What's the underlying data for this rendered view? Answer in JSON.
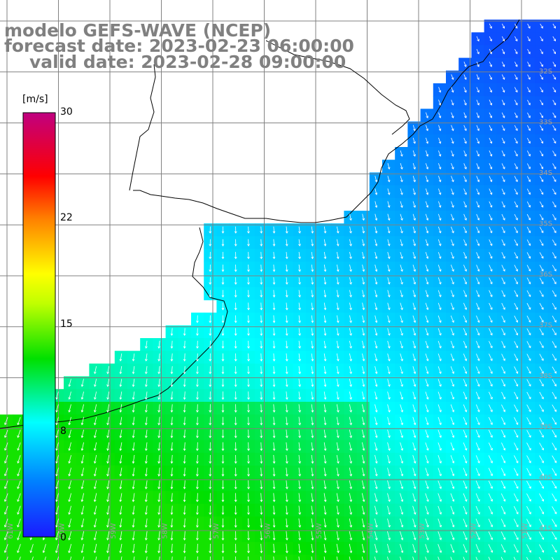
{
  "title": {
    "model": "modelo GEFS-WAVE (NCEP)",
    "forecast": "forecast date: 2023-02-23 06:00:00",
    "valid": "valid date: 2023-02-28 09:00:00"
  },
  "colorbar": {
    "unit": "[m/s]",
    "ticks": [
      "30",
      "22",
      "15",
      "8",
      "0"
    ],
    "tick_values": [
      30,
      22,
      15,
      8,
      0
    ],
    "range": [
      0,
      30
    ],
    "colors": [
      "#1a1aff",
      "#00aaff",
      "#00ffff",
      "#00ff00",
      "#ffff00",
      "#ff8800",
      "#ff0000",
      "#c000c0"
    ]
  },
  "map": {
    "lat_labels": [
      "32S",
      "33S",
      "34S",
      "35S",
      "36S",
      "37S",
      "38S",
      "39S",
      "40S",
      "41S"
    ],
    "lon_labels": [
      "61W",
      "60W",
      "59W",
      "58W",
      "57W",
      "56W",
      "55W",
      "54W",
      "53W",
      "52W",
      "51W"
    ],
    "field": "wind speed and direction",
    "land_color": "#ffffff",
    "grid_color": "#808080",
    "coast_color": "#000000",
    "arrow_color": "#ffffff"
  }
}
